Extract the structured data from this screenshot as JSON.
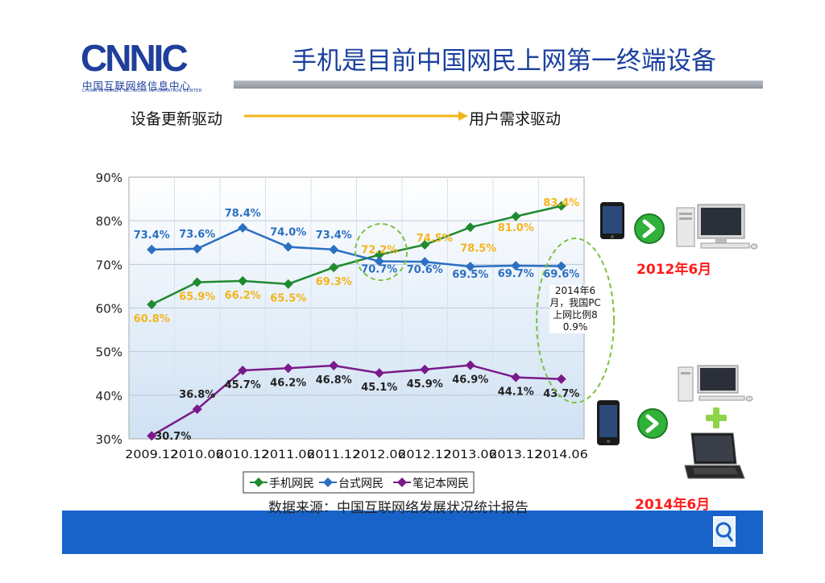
{
  "logo": {
    "mark": "CNNIC",
    "cn": "中国互联网络信息中心",
    "en": "CHINA INTERNET NETWORK INFORMATION CENTER"
  },
  "slide_title": "手机是目前中国网民上网第一终端设备",
  "flow": {
    "from": "设备更新驱动",
    "to": "用户需求驱动"
  },
  "chart_data": {
    "type": "line",
    "categories": [
      "2009.12",
      "2010.06",
      "2010.12",
      "2011.06",
      "2011.12",
      "2012.06",
      "2012.12",
      "2013.06",
      "2013.12",
      "2014.06"
    ],
    "ylim": [
      30,
      90
    ],
    "yticks": [
      "30%",
      "40%",
      "50%",
      "60%",
      "70%",
      "80%",
      "90%"
    ],
    "series": [
      {
        "name": "手机网民",
        "color": "#1f8a2f",
        "label_color": "#f4b41c",
        "values": [
          60.8,
          65.9,
          66.2,
          65.5,
          69.3,
          72.2,
          74.5,
          78.5,
          81.0,
          83.4
        ],
        "labels": [
          "60.8%",
          "65.9%",
          "66.2%",
          "65.5%",
          "69.3%",
          "72.2%",
          "74.5%",
          "78.5%",
          "81.0%",
          "83.4%"
        ]
      },
      {
        "name": "台式网民",
        "color": "#2a6fc2",
        "label_color": "#2a6fc2",
        "values": [
          73.4,
          73.6,
          78.4,
          74.0,
          73.4,
          70.7,
          70.6,
          69.5,
          69.7,
          69.6
        ],
        "labels": [
          "73.4%",
          "73.6%",
          "78.4%",
          "74.0%",
          "73.4%",
          "70.7%",
          "70.6%",
          "69.5%",
          "69.7%",
          "69.6%"
        ]
      },
      {
        "name": "笔记本网民",
        "color": "#7a1a8a",
        "label_color": "#222222",
        "values": [
          30.7,
          36.8,
          45.7,
          46.2,
          46.8,
          45.1,
          45.9,
          46.9,
          44.1,
          43.7
        ],
        "labels": [
          "30.7%",
          "36.8%",
          "45.7%",
          "46.2%",
          "46.8%",
          "45.1%",
          "45.9%",
          "46.9%",
          "44.1%",
          "43.7%"
        ]
      }
    ],
    "annotation": "2014年6月，我国PC上网比例80.9%",
    "legend_position": "bottom"
  },
  "year_labels": {
    "first": "2012年6月",
    "second": "2014年6月"
  },
  "source": "数据来源：中国互联网络发展状况统计报告"
}
